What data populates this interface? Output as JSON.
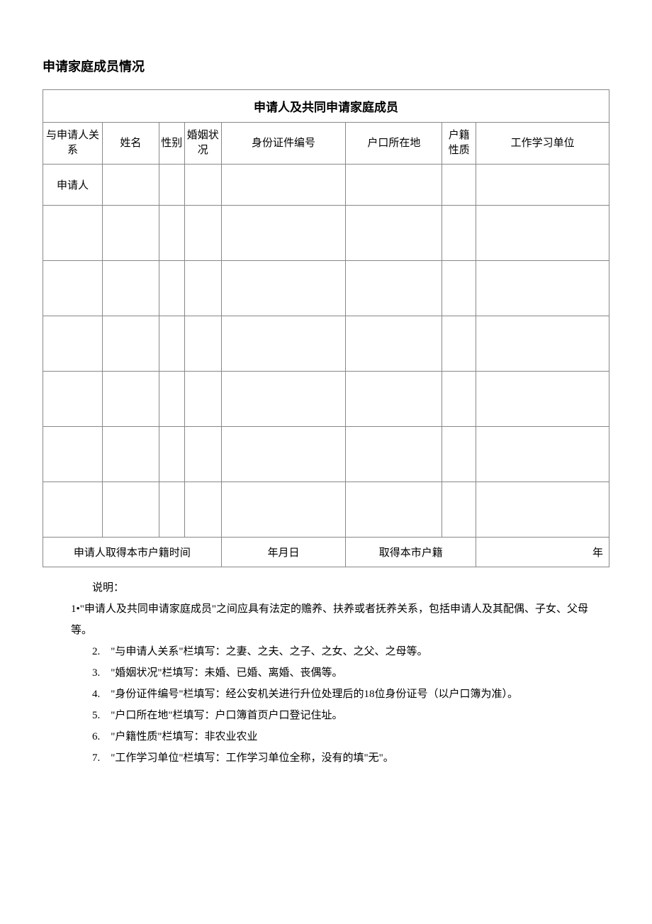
{
  "page": {
    "title": "申请家庭成员情况"
  },
  "table": {
    "caption": "申请人及共同申请家庭成员",
    "columns": {
      "relation": "与申请人关系",
      "name": "姓名",
      "sex": "性别",
      "marital": "婚姻状况",
      "id_number": "身份证件编号",
      "hukou_location": "户口所在地",
      "hukou_type": "户籍性质",
      "work_unit": "工作学习单位"
    },
    "rows": [
      {
        "relation": "申请人",
        "name": "",
        "sex": "",
        "marital": "",
        "id_number": "",
        "hukou_location": "",
        "hukou_type": "",
        "work_unit": ""
      },
      {
        "relation": "",
        "name": "",
        "sex": "",
        "marital": "",
        "id_number": "",
        "hukou_location": "",
        "hukou_type": "",
        "work_unit": ""
      },
      {
        "relation": "",
        "name": "",
        "sex": "",
        "marital": "",
        "id_number": "",
        "hukou_location": "",
        "hukou_type": "",
        "work_unit": ""
      },
      {
        "relation": "",
        "name": "",
        "sex": "",
        "marital": "",
        "id_number": "",
        "hukou_location": "",
        "hukou_type": "",
        "work_unit": ""
      },
      {
        "relation": "",
        "name": "",
        "sex": "",
        "marital": "",
        "id_number": "",
        "hukou_location": "",
        "hukou_type": "",
        "work_unit": ""
      },
      {
        "relation": "",
        "name": "",
        "sex": "",
        "marital": "",
        "id_number": "",
        "hukou_location": "",
        "hukou_type": "",
        "work_unit": ""
      },
      {
        "relation": "",
        "name": "",
        "sex": "",
        "marital": "",
        "id_number": "",
        "hukou_location": "",
        "hukou_type": "",
        "work_unit": ""
      }
    ],
    "footer": {
      "label1": "申请人取得本市户籍时间",
      "value1": "年月日",
      "label2": "取得本市户籍",
      "value2": "年"
    }
  },
  "notes": {
    "intro": "说明：",
    "items": [
      "1•\"申请人及共同申请家庭成员\"之间应具有法定的赡养、扶养或者抚养关系，包括申请人及其配偶、子女、父母等。",
      "2.　\"与申请人关系\"栏填写：之妻、之夫、之子、之女、之父、之母等。",
      "3.　\"婚姻状况\"栏填写：未婚、已婚、离婚、丧偶等。",
      "4.　\"身份证件编号\"栏填写：经公安机关进行升位处理后的18位身份证号（以户口簿为准）。",
      "5.　\"户口所在地\"栏填写：户口簿首页户口登记住址。",
      "6.　\"户籍性质\"栏填写：非农业农业",
      "7.　\"工作学习单位\"栏填写：工作学习单位全称，没有的填\"无\"。"
    ]
  },
  "style": {
    "text_color": "#000000",
    "border_color": "#888888",
    "background_color": "#ffffff",
    "title_fontsize": 18,
    "body_fontsize": 15
  }
}
